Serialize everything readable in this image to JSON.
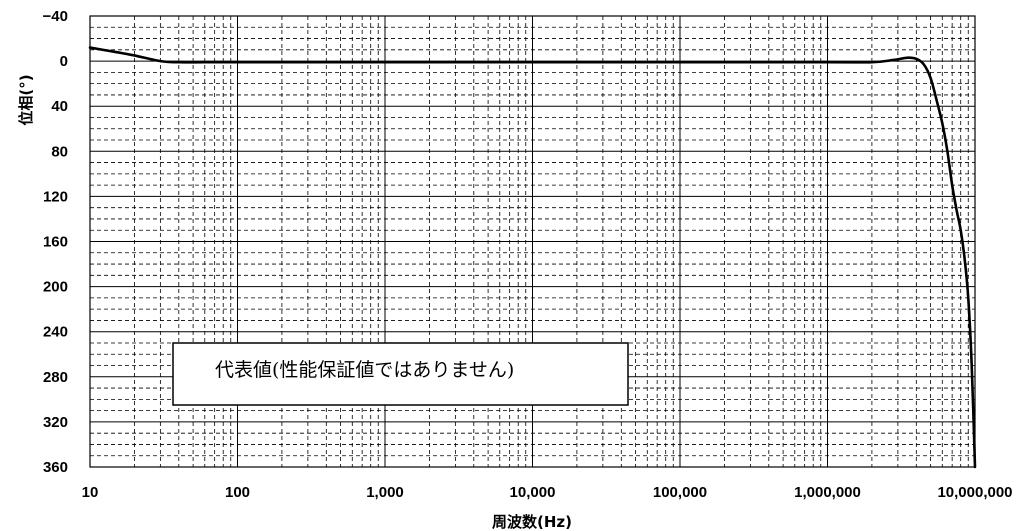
{
  "chart_data": {
    "type": "line",
    "title": "",
    "xlabel": "周波数(Hz)",
    "ylabel": "位相(°)",
    "x_scale": "log",
    "xlim": [
      10,
      10000000
    ],
    "ylim": [
      360,
      -40
    ],
    "y_inverted": true,
    "grid": true,
    "x_ticks": [
      10,
      100,
      1000,
      10000,
      100000,
      1000000,
      10000000
    ],
    "x_tick_labels": [
      "10",
      "100",
      "1,000",
      "10,000",
      "100,000",
      "1,000,000",
      "10,000,000"
    ],
    "y_ticks": [
      -40,
      0,
      40,
      80,
      120,
      160,
      200,
      240,
      280,
      320,
      360
    ],
    "y_tick_labels": [
      "−40",
      "0",
      "40",
      "80",
      "120",
      "160",
      "200",
      "240",
      "280",
      "320",
      "360"
    ],
    "annotation": "代表値(性能保証値ではありません)",
    "series": [
      {
        "color": "#000000",
        "x": [
          10,
          15,
          20,
          30,
          40,
          60,
          100,
          1000,
          10000,
          100000,
          1000000,
          2000000,
          2800000,
          3500000,
          4000000,
          4500000,
          5000000,
          5500000,
          6000000,
          6500000,
          7000000,
          7500000,
          8000000,
          8500000,
          9000000,
          9500000,
          10000000
        ],
        "y": [
          -12,
          -8,
          -5,
          0,
          1,
          1,
          1,
          1,
          1,
          1,
          1,
          1,
          -1,
          -3,
          -2,
          3,
          15,
          35,
          55,
          80,
          110,
          132,
          150,
          175,
          210,
          270,
          360
        ]
      }
    ]
  }
}
